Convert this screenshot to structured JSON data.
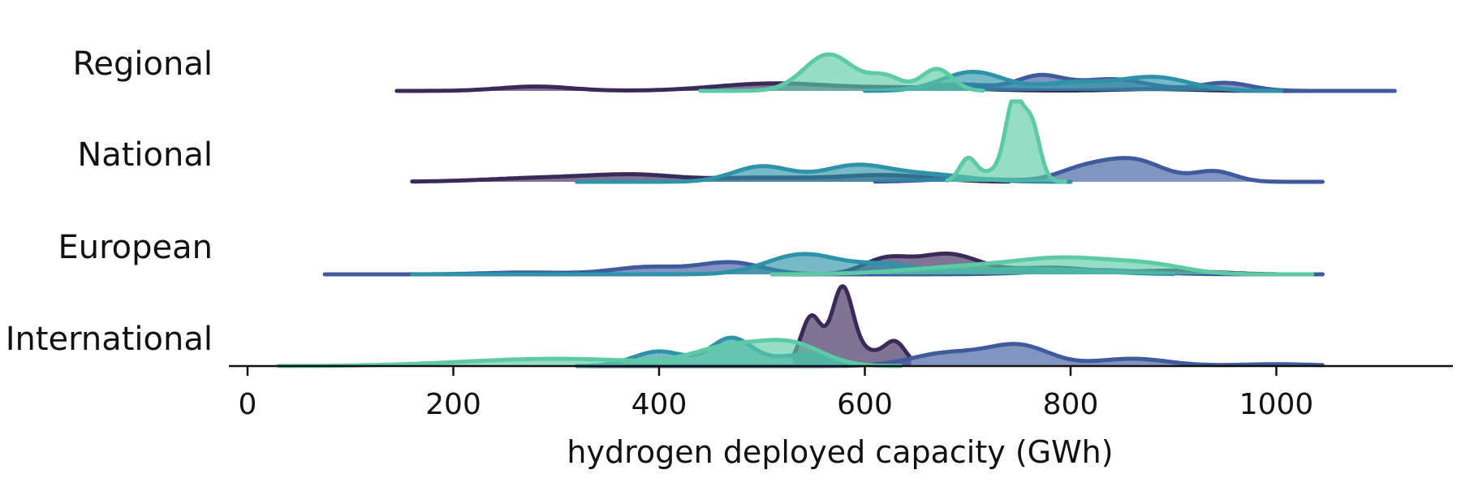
{
  "chart_data": {
    "type": "ridgeline",
    "xlabel": "hydrogen deployed capacity (GWh)",
    "xticks": [
      0,
      200,
      400,
      600,
      800,
      1000
    ],
    "xlim": [
      -20,
      1170
    ],
    "colors": [
      "#3a2a5a",
      "#3f5b9e",
      "#2e93a8",
      "#5ccba5"
    ],
    "rows": [
      {
        "label": "Regional",
        "series": [
          {
            "color_index": 0,
            "range": [
              145,
              1115
            ],
            "bumps": [
              [
                280,
                35,
                0.12
              ],
              [
                510,
                55,
                0.2
              ],
              [
                650,
                60,
                0.09
              ],
              [
                880,
                40,
                0.05
              ]
            ]
          },
          {
            "color_index": 1,
            "range": [
              600,
              1115
            ],
            "bumps": [
              [
                690,
                35,
                0.18
              ],
              [
                770,
                22,
                0.38
              ],
              [
                840,
                35,
                0.32
              ],
              [
                950,
                25,
                0.22
              ]
            ]
          },
          {
            "color_index": 2,
            "range": [
              600,
              1005
            ],
            "bumps": [
              [
                705,
                30,
                0.52
              ],
              [
                800,
                30,
                0.22
              ],
              [
                880,
                35,
                0.38
              ]
            ]
          },
          {
            "color_index": 3,
            "range": [
              440,
              715
            ],
            "bumps": [
              [
                565,
                24,
                1.0
              ],
              [
                620,
                16,
                0.38
              ],
              [
                670,
                15,
                0.6
              ]
            ]
          }
        ]
      },
      {
        "label": "National",
        "series": [
          {
            "color_index": 0,
            "range": [
              160,
              740
            ],
            "bumps": [
              [
                300,
                60,
                0.12
              ],
              [
                380,
                40,
                0.15
              ],
              [
                500,
                50,
                0.11
              ],
              [
                620,
                45,
                0.18
              ]
            ]
          },
          {
            "color_index": 1,
            "range": [
              610,
              1045
            ],
            "bumps": [
              [
                700,
                40,
                0.08
              ],
              [
                810,
                25,
                0.3
              ],
              [
                860,
                30,
                0.6
              ],
              [
                940,
                20,
                0.28
              ]
            ]
          },
          {
            "color_index": 2,
            "range": [
              320,
              800
            ],
            "bumps": [
              [
                500,
                28,
                0.42
              ],
              [
                590,
                32,
                0.42
              ],
              [
                660,
                40,
                0.2
              ]
            ]
          },
          {
            "color_index": 3,
            "range": [
              680,
              795
            ],
            "bumps": [
              [
                700,
                8,
                0.58
              ],
              [
                745,
                8,
                1.9
              ],
              [
                762,
                8,
                1.45
              ],
              [
                735,
                20,
                0.35
              ]
            ]
          }
        ]
      },
      {
        "label": "European",
        "series": [
          {
            "color_index": 0,
            "range": [
              510,
              1000
            ],
            "bumps": [
              [
                620,
                22,
                0.4
              ],
              [
                680,
                30,
                0.55
              ],
              [
                780,
                40,
                0.18
              ],
              [
                900,
                40,
                0.1
              ]
            ]
          },
          {
            "color_index": 1,
            "range": [
              75,
              1045
            ],
            "bumps": [
              [
                270,
                40,
                0.05
              ],
              [
                390,
                35,
                0.2
              ],
              [
                470,
                30,
                0.32
              ],
              [
                820,
                50,
                0.12
              ]
            ]
          },
          {
            "color_index": 2,
            "range": [
              160,
              900
            ],
            "bumps": [
              [
                540,
                35,
                0.55
              ],
              [
                620,
                30,
                0.25
              ],
              [
                760,
                60,
                0.15
              ]
            ]
          },
          {
            "color_index": 3,
            "range": [
              510,
              1035
            ],
            "bumps": [
              [
                700,
                60,
                0.2
              ],
              [
                800,
                50,
                0.4
              ],
              [
                880,
                35,
                0.2
              ]
            ]
          }
        ]
      },
      {
        "label": "International",
        "series": [
          {
            "color_index": 0,
            "range": [
              530,
              645
            ],
            "bumps": [
              [
                548,
                10,
                1.35
              ],
              [
                578,
                10,
                1.95
              ],
              [
                600,
                20,
                0.4
              ],
              [
                630,
                10,
                0.55
              ]
            ]
          },
          {
            "color_index": 1,
            "range": [
              320,
              1045
            ],
            "bumps": [
              [
                680,
                35,
                0.35
              ],
              [
                750,
                30,
                0.55
              ],
              [
                860,
                35,
                0.2
              ],
              [
                1000,
                40,
                0.05
              ]
            ]
          },
          {
            "color_index": 2,
            "range": [
              320,
              635
            ],
            "bumps": [
              [
                400,
                25,
                0.4
              ],
              [
                470,
                20,
                0.75
              ],
              [
                540,
                30,
                0.3
              ]
            ]
          },
          {
            "color_index": 3,
            "range": [
              30,
              635
            ],
            "bumps": [
              [
                300,
                90,
                0.2
              ],
              [
                470,
                35,
                0.5
              ],
              [
                530,
                30,
                0.55
              ]
            ]
          }
        ]
      }
    ]
  }
}
